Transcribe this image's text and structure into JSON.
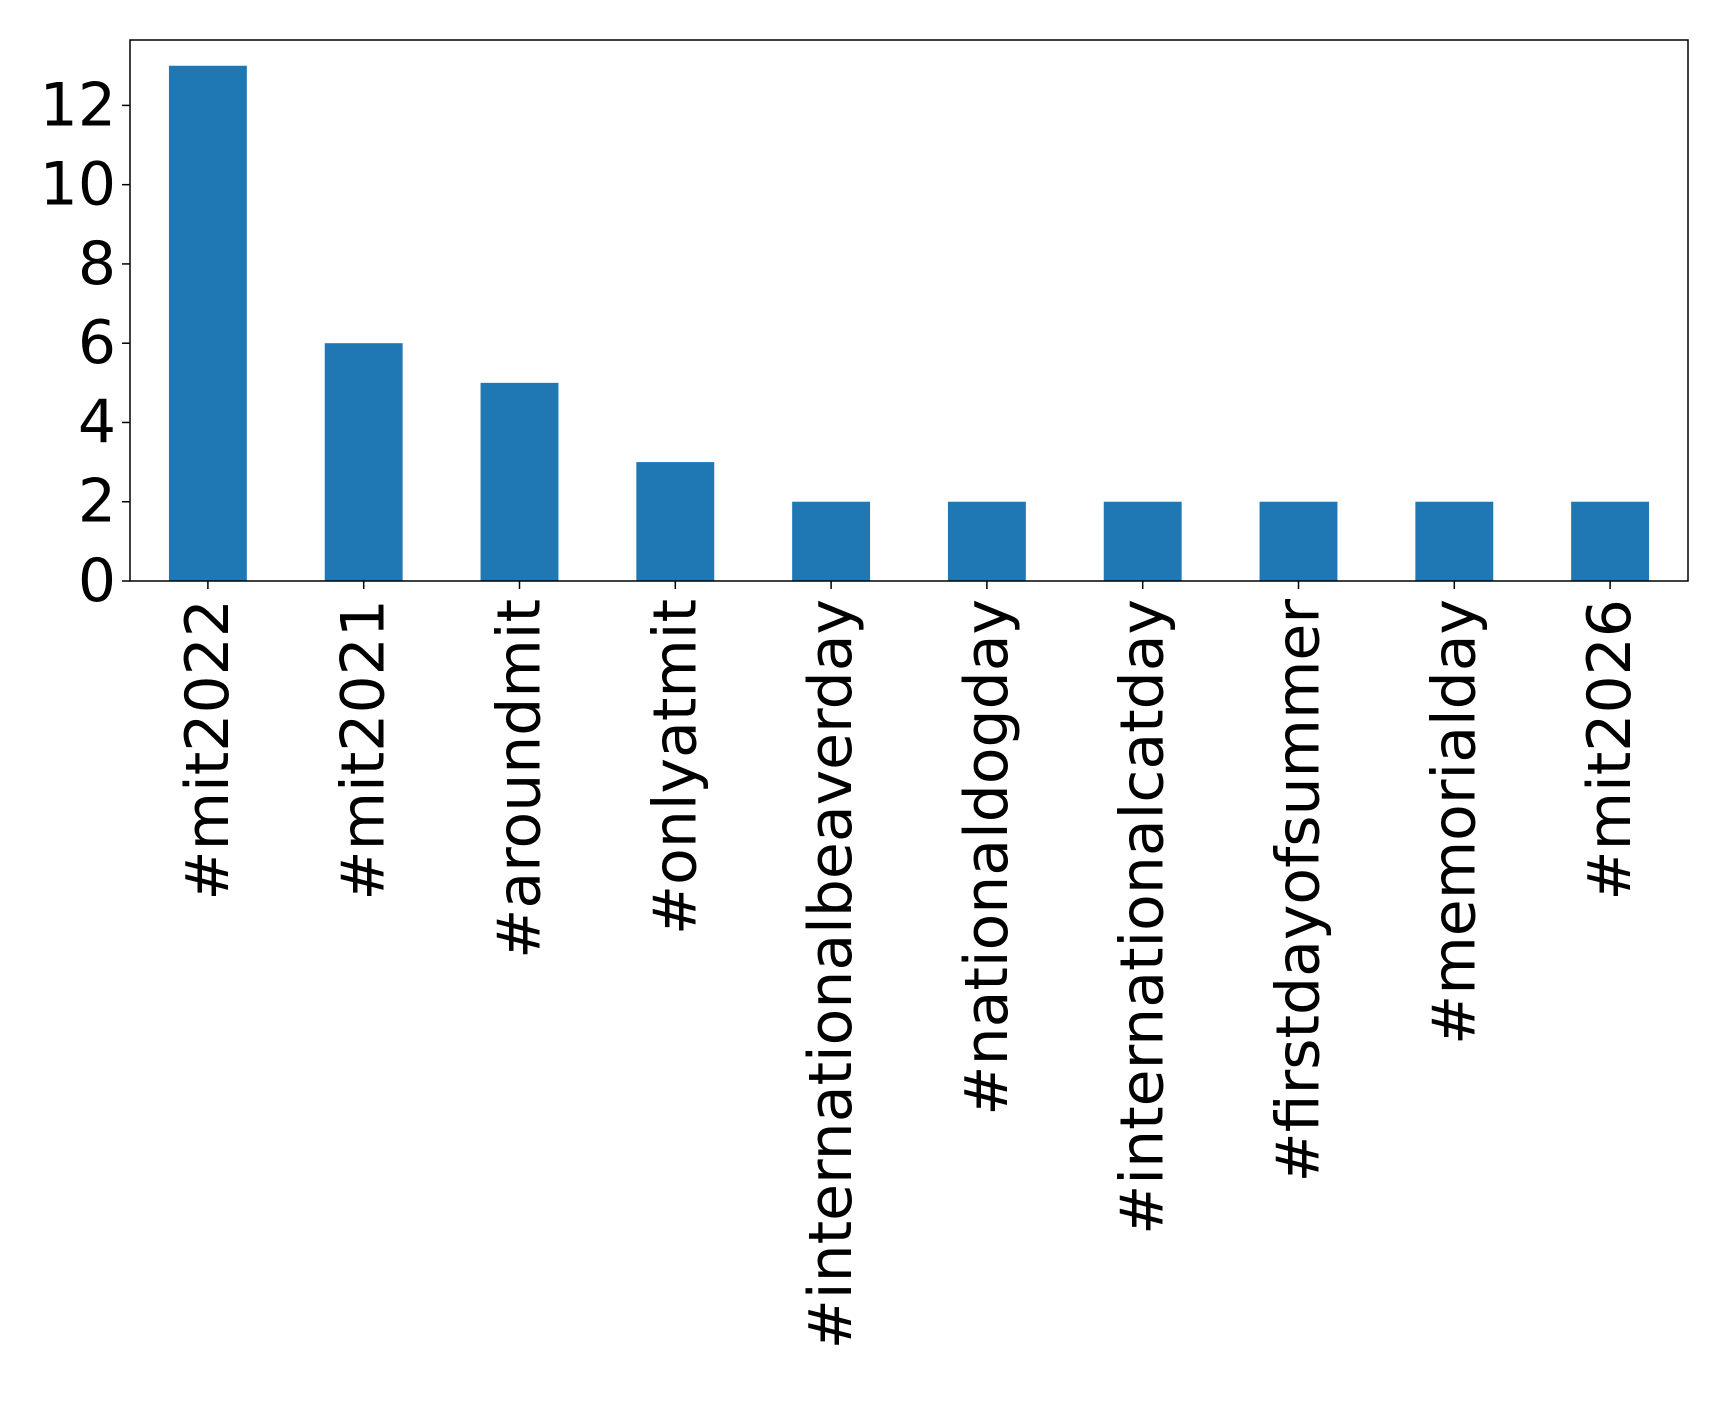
{
  "chart_data": {
    "type": "bar",
    "categories": [
      "#mit2022",
      "#mit2021",
      "#aroundmit",
      "#onlyatmit",
      "#internationalbeaverday",
      "#nationaldogday",
      "#internationalcatday",
      "#firstdayofsummer",
      "#memorialday",
      "#mit2026"
    ],
    "values": [
      13,
      6,
      5,
      3,
      2,
      2,
      2,
      2,
      2,
      2
    ],
    "title": "",
    "xlabel": "",
    "ylabel": "",
    "ylim": [
      0,
      13.65
    ],
    "yticks": [
      "0",
      "2",
      "4",
      "6",
      "8",
      "10",
      "12"
    ],
    "bar_color": "#1f77b4",
    "grid": false,
    "legend": "none"
  }
}
